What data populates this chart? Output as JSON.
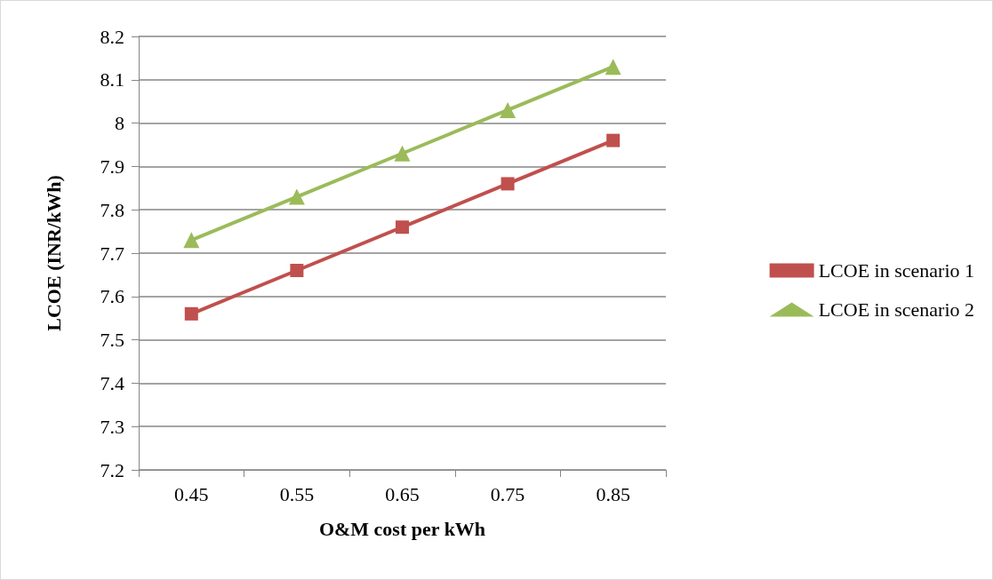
{
  "chart_data": {
    "type": "line",
    "xlabel": "O&M cost per kWh",
    "ylabel": "LCOE (INR/kWh)",
    "categories": [
      "0.45",
      "0.55",
      "0.65",
      "0.75",
      "0.85"
    ],
    "series": [
      {
        "name": "LCOE in scenario 1",
        "color": "#c0504d",
        "marker": "square",
        "values": [
          7.56,
          7.66,
          7.76,
          7.86,
          7.96
        ]
      },
      {
        "name": "LCOE in scenario 2",
        "color": "#9bbb59",
        "marker": "triangle",
        "values": [
          7.73,
          7.83,
          7.93,
          8.03,
          8.13
        ]
      }
    ],
    "ylim": [
      7.2,
      8.2
    ],
    "yticks": [
      7.2,
      7.3,
      7.4,
      7.5,
      7.6,
      7.7,
      7.8,
      7.9,
      8,
      8.1,
      8.2
    ],
    "grid": "y",
    "legend": "right",
    "line_style": "solid"
  }
}
